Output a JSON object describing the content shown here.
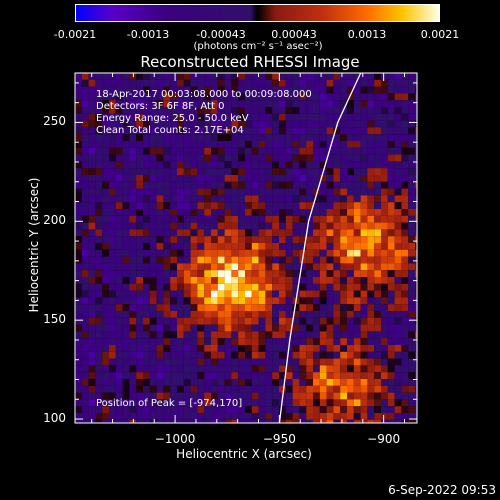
{
  "colorbar": {
    "ticks": [
      "-0.0021",
      "-0.0013",
      "-0.00043",
      "0.00043",
      "0.0013",
      "0.0021"
    ],
    "unit": "(photons cm⁻² s⁻¹ asec⁻²)"
  },
  "chart_data": {
    "type": "heatmap",
    "title": "Reconstructed RHESSI Image",
    "xlabel": "Heliocentric X (arcsec)",
    "ylabel": "Heliocentric Y (arcsec)",
    "xlim": [
      -1048,
      -884
    ],
    "ylim": [
      98,
      275
    ],
    "x_ticks": [
      -1000,
      -950,
      -900
    ],
    "y_ticks": [
      100,
      150,
      200,
      250
    ],
    "x_tick_labels": [
      "−1000",
      "−950",
      "−900"
    ],
    "y_tick_labels": [
      "100",
      "150",
      "200",
      "250"
    ],
    "color_range": [
      -0.0021,
      0.0021
    ],
    "sources": [
      {
        "x": -974,
        "y": 170,
        "peak": 0.0021
      },
      {
        "x": -910,
        "y": 190,
        "peak": 0.0016
      },
      {
        "x": -922,
        "y": 118,
        "peak": 0.0013
      }
    ],
    "limb_line": [
      [
        -950,
        98
      ],
      [
        -945,
        140
      ],
      [
        -936,
        200
      ],
      [
        -922,
        250
      ],
      [
        -911,
        275
      ]
    ],
    "info_lines": [
      "18-Apr-2017 00:03:08.000 to 00:09:08.000",
      "Detectors: 3F 6F 8F, Att 0",
      "Energy Range: 25.0 - 50.0 keV",
      "Clean     Total counts: 2.17E+04"
    ],
    "peak_label": "Position of Peak = [-974,170]"
  },
  "footer_date": "6-Sep-2022 09:53"
}
